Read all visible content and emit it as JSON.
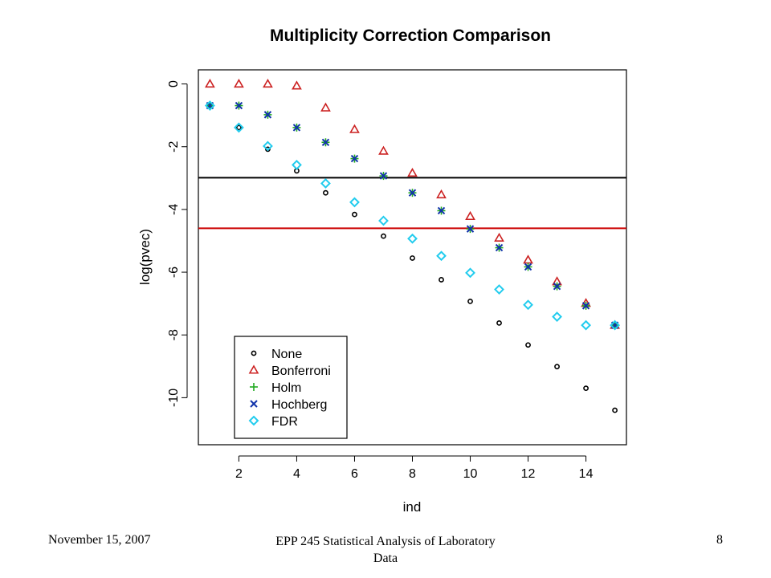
{
  "chart_data": {
    "type": "scatter",
    "title": "Multiplicity Correction Comparison",
    "xlabel": "ind",
    "ylabel": "log(pvec)",
    "xlim": [
      0.6,
      15.4
    ],
    "ylim": [
      -11.5,
      0.45
    ],
    "x_ticks": [
      2,
      4,
      6,
      8,
      10,
      12,
      14
    ],
    "y_ticks": [
      0,
      -2,
      -4,
      -6,
      -8,
      -10
    ],
    "x": [
      1,
      2,
      3,
      4,
      5,
      6,
      7,
      8,
      9,
      10,
      11,
      12,
      13,
      14,
      15
    ],
    "series": [
      {
        "name": "None",
        "marker": "circle",
        "color": "#000000",
        "values": [
          -0.69,
          -1.39,
          -2.08,
          -2.77,
          -3.47,
          -4.16,
          -4.85,
          -5.55,
          -6.24,
          -6.93,
          -7.62,
          -8.32,
          -9.01,
          -9.7,
          -10.4
        ]
      },
      {
        "name": "Bonferroni",
        "marker": "triangle",
        "color": "#cc2222",
        "values": [
          0,
          0,
          0,
          -0.06,
          -0.76,
          -1.45,
          -2.14,
          -2.84,
          -3.53,
          -4.22,
          -4.91,
          -5.61,
          -6.3,
          -6.99,
          -7.69
        ]
      },
      {
        "name": "Holm",
        "marker": "plus",
        "color": "#22aa22",
        "values": [
          -0.69,
          -0.69,
          -0.98,
          -1.39,
          -1.86,
          -2.38,
          -2.93,
          -3.47,
          -4.04,
          -4.62,
          -5.22,
          -5.83,
          -6.45,
          -7.07,
          -7.69
        ]
      },
      {
        "name": "Hochberg",
        "marker": "cross",
        "color": "#1133aa",
        "values": [
          -0.69,
          -0.69,
          -0.98,
          -1.39,
          -1.86,
          -2.38,
          -2.93,
          -3.47,
          -4.04,
          -4.62,
          -5.22,
          -5.83,
          -6.45,
          -7.07,
          -7.69
        ]
      },
      {
        "name": "FDR",
        "marker": "diamond",
        "color": "#22ccee",
        "values": [
          -0.69,
          -1.39,
          -1.98,
          -2.58,
          -3.17,
          -3.77,
          -4.36,
          -4.93,
          -5.48,
          -6.02,
          -6.55,
          -7.04,
          -7.42,
          -7.69,
          -7.69
        ]
      }
    ],
    "hlines": [
      {
        "y": -2.99,
        "color": "#000000"
      },
      {
        "y": -4.6,
        "color": "#cc0000"
      }
    ],
    "legend_position": "bottom-left"
  },
  "footer": {
    "date": "November 15, 2007",
    "course": "EPP 245 Statistical Analysis of Laboratory Data",
    "page": "8"
  }
}
